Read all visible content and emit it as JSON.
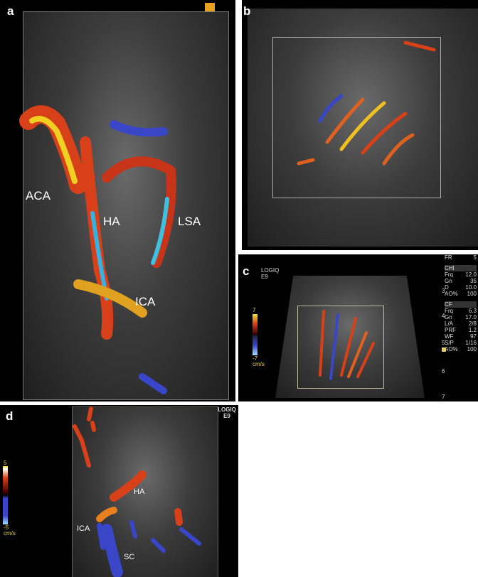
{
  "panels": {
    "a": {
      "label": "a",
      "vessels": [
        "ACA",
        "HA",
        "LSA",
        "ICA"
      ]
    },
    "b": {
      "label": "b"
    },
    "c": {
      "label": "c",
      "device": "LOGIQ E9",
      "scale": {
        "max": "7",
        "min": "-7",
        "unit": "cm/s"
      },
      "params": [
        {
          "k": "FR",
          "v": "5"
        },
        {
          "k": "CHI",
          "v": ""
        },
        {
          "k": "Frq",
          "v": "12.0"
        },
        {
          "k": "Gn",
          "v": "35"
        },
        {
          "k": "D",
          "v": "10.0"
        },
        {
          "k": "AO%",
          "v": "100"
        },
        {
          "k": "CF",
          "v": ""
        },
        {
          "k": "Frq",
          "v": "6.3"
        },
        {
          "k": "Gn",
          "v": "17.0"
        },
        {
          "k": "L/A",
          "v": "2/8"
        },
        {
          "k": "PRF",
          "v": "1.2"
        },
        {
          "k": "WF",
          "v": "97"
        },
        {
          "k": "S/P",
          "v": "1/16"
        },
        {
          "k": "AO%",
          "v": "100"
        }
      ],
      "depth_ticks": [
        "3",
        "4",
        "5",
        "6",
        "7"
      ]
    },
    "d": {
      "label": "d",
      "device": "LOGIQ E9",
      "scale": {
        "max": "5",
        "min": "-5",
        "unit": "cm/s"
      },
      "vessels": [
        "HA",
        "ICA",
        "SC"
      ]
    }
  },
  "colors": {
    "flow_red": "#d8401a",
    "flow_yellow": "#f0d020",
    "flow_blue": "#3a46c8",
    "flow_cyan": "#40c0e0"
  }
}
